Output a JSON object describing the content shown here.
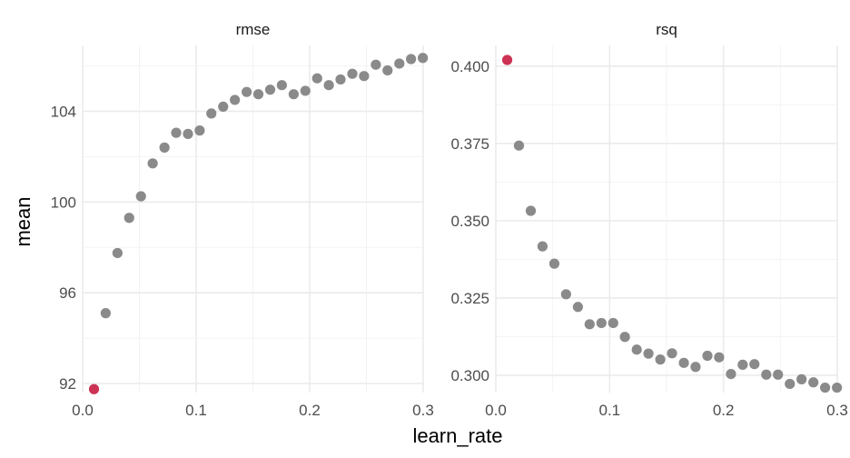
{
  "chart_data": {
    "type": "scatter",
    "xlabel": "learn_rate",
    "ylabel": "mean",
    "colors": {
      "point": "#8a8a8a",
      "best_point": "#cc3355"
    },
    "panels": [
      {
        "title": "rmse",
        "xlim": [
          0.0,
          0.3
        ],
        "ylim": [
          91.6,
          106.9
        ],
        "x_ticks": [
          "0.0",
          "0.1",
          "0.2",
          "0.3"
        ],
        "x_tick_values": [
          0.0,
          0.1,
          0.2,
          0.3
        ],
        "y_ticks": [
          "92",
          "96",
          "100",
          "104"
        ],
        "y_tick_values": [
          92,
          96,
          100,
          104
        ],
        "best_index": 0,
        "x": [
          0.01,
          0.0203,
          0.0307,
          0.041,
          0.0514,
          0.0617,
          0.0721,
          0.0824,
          0.0928,
          0.1031,
          0.1134,
          0.1238,
          0.1341,
          0.1445,
          0.1548,
          0.1652,
          0.1755,
          0.1859,
          0.1962,
          0.2066,
          0.2169,
          0.2272,
          0.2376,
          0.2479,
          0.2583,
          0.2686,
          0.279,
          0.2893,
          0.2997
        ],
        "y": [
          91.75,
          95.1,
          97.75,
          99.3,
          100.25,
          101.7,
          102.4,
          103.05,
          103.0,
          103.15,
          103.9,
          104.2,
          104.5,
          104.85,
          104.75,
          104.95,
          105.15,
          104.75,
          104.9,
          105.45,
          105.15,
          105.4,
          105.65,
          105.55,
          106.05,
          105.8,
          106.1,
          106.3,
          106.35
        ]
      },
      {
        "title": "rsq",
        "xlim": [
          0.0,
          0.3
        ],
        "ylim": [
          0.2944,
          0.4067
        ],
        "x_ticks": [
          "0.0",
          "0.1",
          "0.2",
          "0.3"
        ],
        "x_tick_values": [
          0.0,
          0.1,
          0.2,
          0.3
        ],
        "y_ticks": [
          "0.300",
          "0.325",
          "0.350",
          "0.375",
          "0.400"
        ],
        "y_tick_values": [
          0.3,
          0.325,
          0.35,
          0.375,
          0.4
        ],
        "best_index": 0,
        "x": [
          0.01,
          0.0203,
          0.0307,
          0.041,
          0.0514,
          0.0617,
          0.0721,
          0.0824,
          0.0928,
          0.1031,
          0.1134,
          0.1238,
          0.1341,
          0.1445,
          0.1548,
          0.1652,
          0.1755,
          0.1859,
          0.1962,
          0.2066,
          0.2169,
          0.2272,
          0.2376,
          0.2479,
          0.2583,
          0.2686,
          0.279,
          0.2893,
          0.2997
        ],
        "y": [
          0.402,
          0.3743,
          0.3532,
          0.3417,
          0.3361,
          0.3262,
          0.3221,
          0.3165,
          0.3169,
          0.3169,
          0.3124,
          0.3083,
          0.307,
          0.3051,
          0.3071,
          0.304,
          0.3027,
          0.3063,
          0.3058,
          0.3004,
          0.3034,
          0.3036,
          0.3002,
          0.3002,
          0.2972,
          0.2987,
          0.2977,
          0.296,
          0.296
        ]
      }
    ]
  }
}
